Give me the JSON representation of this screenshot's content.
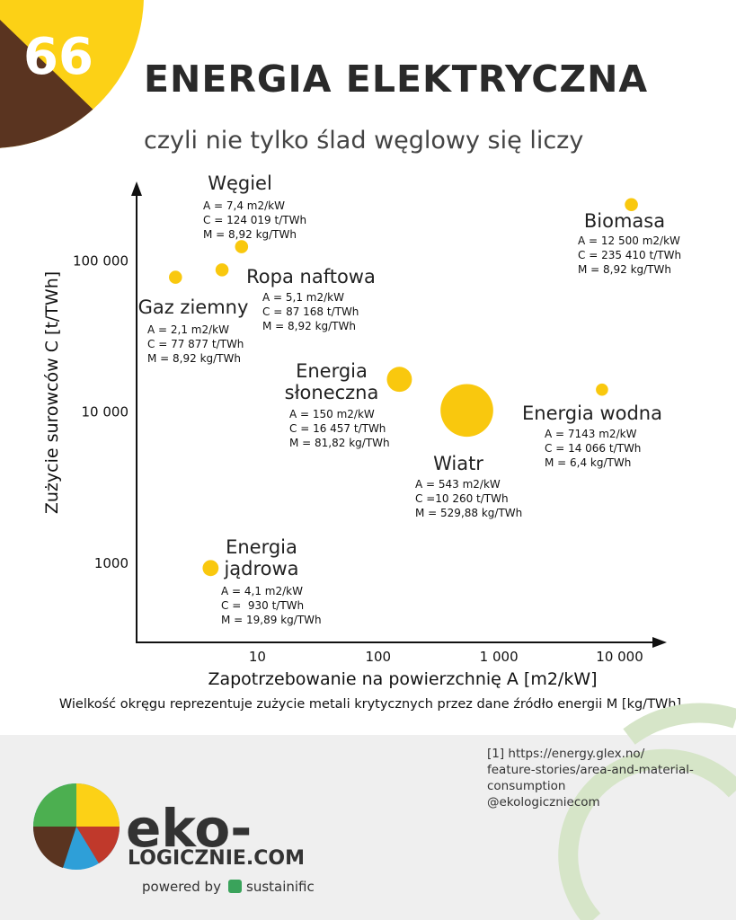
{
  "header": {
    "number": "66",
    "title": "ENERGIA ELEKTRYCZNA",
    "subtitle": "czyli nie tylko ślad węglowy się liczy"
  },
  "chart_data": {
    "type": "bubble",
    "x_label": "Zapotrzebowanie na powierzchnię A [m2/kW]",
    "y_label": "Zużycie surowców C [t/TWh]",
    "note": "Wielkość okręgu reprezentuje zużycie metali krytycznych przez dane źródło energii M [kg/TWh]",
    "x_log": true,
    "y_log": true,
    "xlim": [
      1,
      20000
    ],
    "ylim": [
      300,
      300000
    ],
    "xticks": [
      10,
      100,
      {
        "value": 1000,
        "label": "1 000"
      },
      {
        "value": 10000,
        "label": "10 000"
      }
    ],
    "yticks": [
      1000,
      {
        "value": 10000,
        "label": "10 000"
      },
      {
        "value": 100000,
        "label": "100 000"
      }
    ],
    "series": [
      {
        "name": "Węgiel",
        "color": "#f9c80e",
        "x": [
          7.4
        ],
        "values": [
          124019
        ],
        "sizes": [
          8.92
        ],
        "x_labels": [
          "A = 7,4 m2/kW"
        ],
        "value_labels": [
          "C = 124 019 t/TWh"
        ],
        "size_labels": [
          "M = 8,92 kg/TWh"
        ]
      },
      {
        "name": "Ropa naftowa",
        "color": "#f9c80e",
        "x": [
          5.1
        ],
        "values": [
          87168
        ],
        "sizes": [
          8.92
        ],
        "x_labels": [
          "A = 5,1 m2/kW"
        ],
        "value_labels": [
          "C = 87 168 t/TWh"
        ],
        "size_labels": [
          "M = 8,92 kg/TWh"
        ]
      },
      {
        "name": "Gaz ziemny",
        "color": "#f9c80e",
        "x": [
          2.1
        ],
        "values": [
          77877
        ],
        "sizes": [
          8.92
        ],
        "x_labels": [
          "A = 2,1 m2/kW"
        ],
        "value_labels": [
          "C = 77 877 t/TWh"
        ],
        "size_labels": [
          "M = 8,92 kg/TWh"
        ]
      },
      {
        "name": "Energia słoneczna",
        "color": "#f9c80e",
        "x": [
          150
        ],
        "values": [
          16457
        ],
        "sizes": [
          81.82
        ],
        "x_labels": [
          "A = 150 m2/kW"
        ],
        "value_labels": [
          "C = 16 457 t/TWh"
        ],
        "size_labels": [
          "M = 81,82 kg/TWh"
        ]
      },
      {
        "name": "Wiatr",
        "color": "#f9c80e",
        "x": [
          543
        ],
        "values": [
          10260
        ],
        "sizes": [
          529.88
        ],
        "x_labels": [
          "A = 543 m2/kW"
        ],
        "value_labels": [
          "C =10 260 t/TWh"
        ],
        "size_labels": [
          "M = 529,88 kg/TWh"
        ]
      },
      {
        "name": "Biomasa",
        "color": "#f9c80e",
        "x": [
          12500
        ],
        "values": [
          235410
        ],
        "sizes": [
          8.92
        ],
        "x_labels": [
          "A = 12 500 m2/kW"
        ],
        "value_labels": [
          "C = 235 410 t/TWh"
        ],
        "size_labels": [
          "M = 8,92 kg/TWh"
        ]
      },
      {
        "name": "Energia wodna",
        "color": "#f9c80e",
        "x": [
          7143
        ],
        "values": [
          14066
        ],
        "sizes": [
          6.4
        ],
        "x_labels": [
          "A = 7143 m2/kW"
        ],
        "value_labels": [
          "C = 14 066 t/TWh"
        ],
        "size_labels": [
          "M = 6,4 kg/TWh"
        ]
      },
      {
        "name": "Energia jądrowa",
        "color": "#f9c80e",
        "x": [
          4.1
        ],
        "values": [
          930
        ],
        "sizes": [
          19.89
        ],
        "x_labels": [
          "A = 4,1 m2/kW"
        ],
        "value_labels": [
          "C =  930 t/TWh"
        ],
        "size_labels": [
          "M = 19,89 kg/TWh"
        ]
      }
    ]
  },
  "footer": {
    "source": [
      "[1] https://energy.glex.no/",
      "feature-stories/area-and-material-",
      "consumption",
      "@ekologiczniecom"
    ],
    "logo_top": "eko-",
    "logo_bottom": "LOGICZNIE.COM",
    "powered": "powered by",
    "partner": "sustainific"
  }
}
